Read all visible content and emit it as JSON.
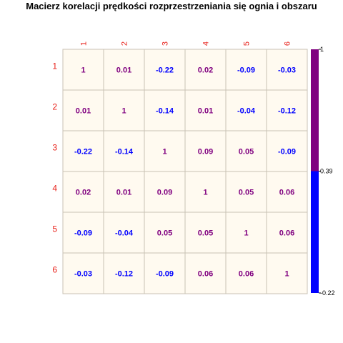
{
  "chart_data": {
    "type": "heatmap",
    "title": "Macierz korelacji prędkości rozprzestrzeniania się ognia i obszaru",
    "labels": [
      "1",
      "2",
      "3",
      "4",
      "5",
      "6"
    ],
    "matrix": [
      [
        1,
        0.01,
        -0.22,
        0.02,
        -0.09,
        -0.03
      ],
      [
        0.01,
        1,
        -0.14,
        0.01,
        -0.04,
        -0.12
      ],
      [
        -0.22,
        -0.14,
        1,
        0.09,
        0.05,
        -0.09
      ],
      [
        0.02,
        0.01,
        0.09,
        1,
        0.05,
        0.06
      ],
      [
        -0.09,
        -0.04,
        0.05,
        0.05,
        1,
        0.06
      ],
      [
        -0.03,
        -0.12,
        -0.09,
        0.06,
        0.06,
        1
      ]
    ],
    "color_range": [
      -0.22,
      1
    ],
    "color_break": 0.39,
    "colorbar_ticks": [
      "1",
      "0.39",
      "-0.22"
    ],
    "colors": {
      "low": "#0000ff",
      "high": "#800080",
      "cell_bg": "#fffaf0",
      "grid": "#c8c2b4",
      "label": "#e8211a"
    }
  }
}
